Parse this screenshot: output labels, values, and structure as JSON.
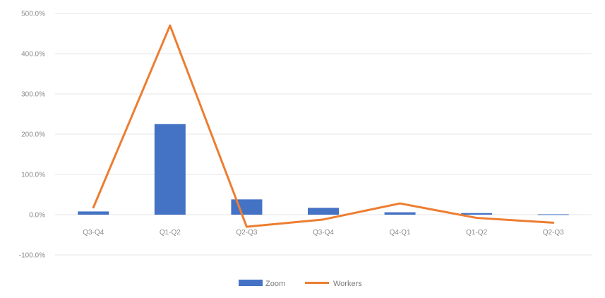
{
  "chart_data": {
    "type": "bar",
    "categories": [
      "Q3-Q4",
      "Q1-Q2",
      "Q2-Q3",
      "Q3-Q4",
      "Q4-Q1",
      "Q1-Q2",
      "Q2-Q3"
    ],
    "series": [
      {
        "name": "Zoom",
        "type": "bar",
        "color": "#4472C4",
        "values": [
          8,
          225,
          38,
          17,
          6,
          4,
          1
        ]
      },
      {
        "name": "Workers",
        "type": "line",
        "color": "#ED7D31",
        "values": [
          18,
          470,
          -30,
          -12,
          28,
          -8,
          -20
        ]
      }
    ],
    "y_ticks": [
      500,
      400,
      300,
      200,
      100,
      0,
      -100
    ],
    "y_tick_labels": [
      "500.0%",
      "400.0%",
      "300.0%",
      "200.0%",
      "100.0%",
      "0.0%",
      "-100.0%"
    ],
    "ylim": [
      -100,
      500
    ],
    "grid": true,
    "legend_position": "bottom-center"
  }
}
